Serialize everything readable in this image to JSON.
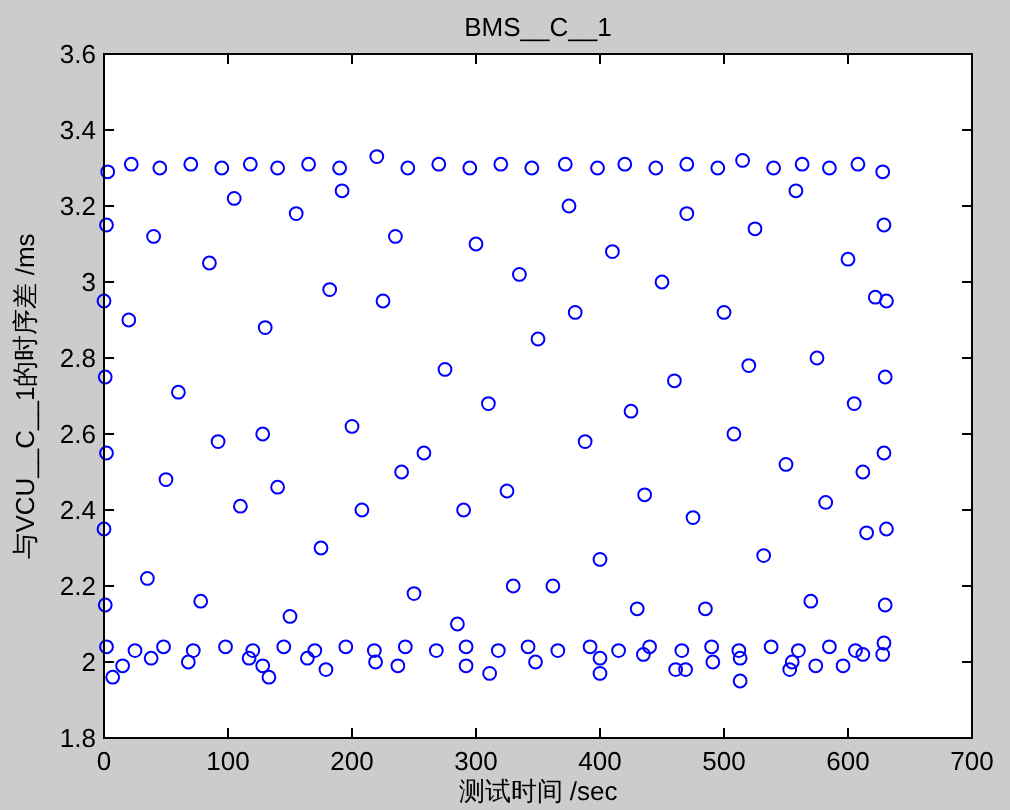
{
  "chart_data": {
    "type": "scatter",
    "title": "BMS__C__1",
    "xlabel": "测试时间 /sec",
    "ylabel": "与VCU__C__1的时序差 /ms",
    "color": "#0000ff",
    "marker": "circle",
    "xlim": [
      0,
      700
    ],
    "xticks": [
      0,
      100,
      200,
      300,
      400,
      500,
      600,
      700
    ],
    "ylim": [
      1.8,
      3.6
    ],
    "yticks": [
      1.8,
      2,
      2.2,
      2.4,
      2.6,
      2.8,
      3,
      3.2,
      3.4,
      3.6
    ],
    "x": [
      3,
      22,
      45,
      70,
      95,
      118,
      140,
      165,
      190,
      220,
      245,
      270,
      295,
      320,
      345,
      372,
      398,
      420,
      445,
      470,
      495,
      515,
      540,
      563,
      585,
      608,
      628,
      2,
      25,
      48,
      72,
      98,
      120,
      145,
      170,
      195,
      218,
      243,
      268,
      292,
      318,
      342,
      366,
      392,
      415,
      440,
      466,
      490,
      512,
      538,
      560,
      585,
      606,
      629,
      7,
      15,
      38,
      68,
      117,
      128,
      133,
      164,
      179,
      219,
      237,
      292,
      311,
      348,
      400,
      400,
      435,
      461,
      469,
      491,
      513,
      513,
      553,
      555,
      574,
      596,
      612,
      628,
      1,
      0,
      2,
      1,
      0,
      2,
      630,
      631,
      629,
      630,
      631,
      629,
      35,
      60,
      85,
      110,
      130,
      155,
      175,
      200,
      225,
      250,
      275,
      300,
      325,
      350,
      375,
      400,
      425,
      450,
      475,
      500,
      525,
      550,
      575,
      600,
      615,
      20,
      50,
      78,
      105,
      128,
      150,
      182,
      208,
      235,
      258,
      285,
      310,
      335,
      362,
      388,
      410,
      436,
      460,
      485,
      508,
      532,
      558,
      582,
      605,
      622,
      40,
      92,
      140,
      192,
      240,
      290,
      330,
      380,
      430,
      470,
      520,
      570,
      612
    ],
    "values": [
      3.29,
      3.31,
      3.3,
      3.31,
      3.3,
      3.31,
      3.3,
      3.31,
      3.3,
      3.33,
      3.3,
      3.31,
      3.3,
      3.31,
      3.3,
      3.31,
      3.3,
      3.31,
      3.3,
      3.31,
      3.3,
      3.32,
      3.3,
      3.31,
      3.3,
      3.31,
      3.29,
      2.04,
      2.03,
      2.04,
      2.03,
      2.04,
      2.03,
      2.04,
      2.03,
      2.04,
      2.03,
      2.04,
      2.03,
      2.04,
      2.03,
      2.04,
      2.03,
      2.04,
      2.03,
      2.04,
      2.03,
      2.04,
      2.03,
      2.04,
      2.03,
      2.04,
      2.03,
      2.05,
      1.96,
      1.99,
      2.01,
      2.0,
      2.01,
      1.99,
      1.96,
      2.01,
      1.98,
      2.0,
      1.99,
      1.99,
      1.97,
      2.0,
      1.97,
      2.01,
      2.02,
      1.98,
      1.98,
      2.0,
      1.95,
      2.01,
      1.98,
      2.0,
      1.99,
      1.99,
      2.02,
      2.02,
      2.15,
      2.35,
      2.55,
      2.75,
      2.95,
      3.15,
      2.15,
      2.35,
      2.55,
      2.75,
      2.95,
      3.15,
      2.22,
      2.71,
      3.05,
      2.41,
      2.88,
      3.18,
      2.3,
      2.62,
      2.95,
      2.18,
      2.77,
      3.1,
      2.45,
      2.85,
      3.2,
      2.27,
      2.66,
      3.0,
      2.38,
      2.92,
      3.14,
      2.52,
      2.8,
      3.06,
      2.34,
      2.9,
      2.48,
      2.16,
      3.22,
      2.6,
      2.12,
      2.98,
      2.4,
      3.12,
      2.55,
      2.1,
      2.68,
      3.02,
      2.2,
      2.58,
      3.08,
      2.44,
      2.74,
      2.14,
      2.6,
      2.28,
      3.24,
      2.42,
      2.68,
      2.96,
      3.12,
      2.58,
      2.46,
      3.24,
      2.5,
      2.4,
      2.2,
      2.92,
      2.14,
      3.18,
      2.78,
      2.16,
      2.5
    ]
  }
}
